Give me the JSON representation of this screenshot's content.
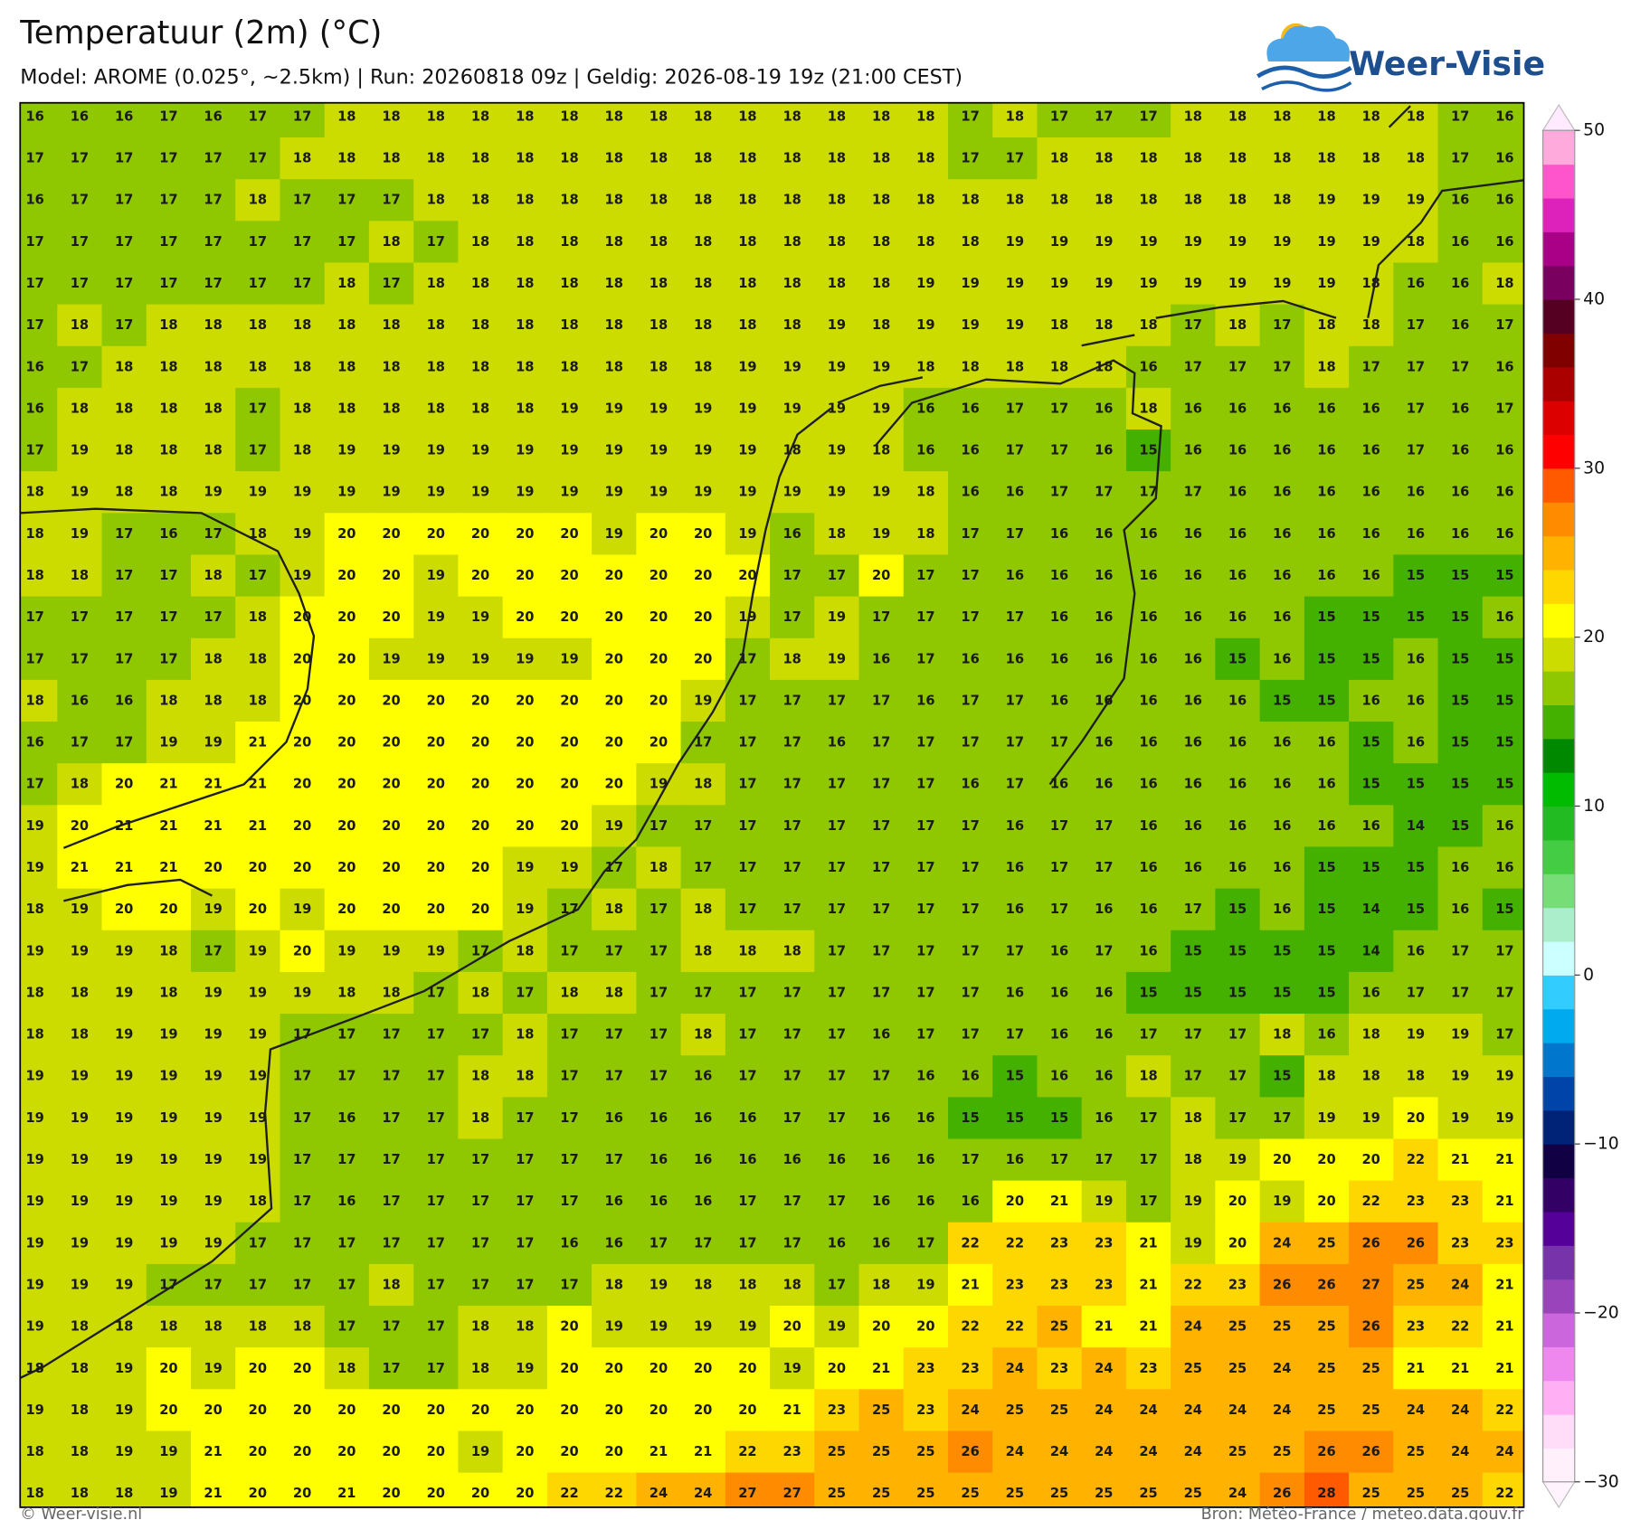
{
  "header": {
    "title": "Temperatuur (2m) (°C)",
    "subtitle": "Model: AROME (0.025°, ~2.5km)  |  Run: 20260818 09z  |  Geldig: 2026-08-19 19z (21:00 CEST)",
    "logo": "Weer-Visie"
  },
  "map": {
    "grid": {
      "rows": [
        [
          16,
          16,
          16,
          17,
          16,
          17,
          17,
          18,
          18,
          18,
          18,
          18,
          18,
          18,
          18,
          18,
          18,
          18,
          18,
          18,
          18,
          17,
          18,
          17,
          17,
          17,
          18,
          18,
          18,
          18,
          18,
          18,
          17,
          16
        ],
        [
          17,
          17,
          17,
          17,
          17,
          17,
          18,
          18,
          18,
          18,
          18,
          18,
          18,
          18,
          18,
          18,
          18,
          18,
          18,
          18,
          18,
          17,
          17,
          18,
          18,
          18,
          18,
          18,
          18,
          18,
          18,
          18,
          17,
          16
        ],
        [
          16,
          17,
          17,
          17,
          17,
          18,
          17,
          17,
          17,
          18,
          18,
          18,
          18,
          18,
          18,
          18,
          18,
          18,
          18,
          18,
          18,
          18,
          18,
          18,
          18,
          18,
          18,
          18,
          18,
          19,
          19,
          19,
          16,
          16
        ],
        [
          17,
          17,
          17,
          17,
          17,
          17,
          17,
          17,
          18,
          17,
          18,
          18,
          18,
          18,
          18,
          18,
          18,
          18,
          18,
          18,
          18,
          18,
          19,
          19,
          19,
          19,
          19,
          19,
          19,
          19,
          19,
          18,
          16,
          16
        ],
        [
          17,
          17,
          17,
          17,
          17,
          17,
          17,
          18,
          17,
          18,
          18,
          18,
          18,
          18,
          18,
          18,
          18,
          18,
          18,
          18,
          19,
          19,
          19,
          19,
          19,
          19,
          19,
          19,
          19,
          19,
          18,
          16,
          16,
          18
        ],
        [
          17,
          18,
          17,
          18,
          18,
          18,
          18,
          18,
          18,
          18,
          18,
          18,
          18,
          18,
          18,
          18,
          18,
          18,
          19,
          18,
          19,
          19,
          19,
          18,
          18,
          18,
          17,
          18,
          17,
          18,
          18,
          17,
          16,
          17
        ],
        [
          16,
          17,
          18,
          18,
          18,
          18,
          18,
          18,
          18,
          18,
          18,
          18,
          18,
          18,
          18,
          18,
          19,
          19,
          19,
          19,
          18,
          18,
          18,
          18,
          18,
          16,
          17,
          17,
          17,
          18,
          17,
          17,
          17,
          16
        ],
        [
          16,
          18,
          18,
          18,
          18,
          17,
          18,
          18,
          18,
          18,
          18,
          18,
          19,
          19,
          19,
          19,
          19,
          19,
          19,
          19,
          16,
          16,
          17,
          17,
          16,
          18,
          16,
          16,
          16,
          16,
          16,
          17,
          16,
          17
        ],
        [
          17,
          19,
          18,
          18,
          18,
          17,
          18,
          19,
          19,
          19,
          19,
          19,
          19,
          19,
          19,
          19,
          19,
          18,
          19,
          18,
          16,
          16,
          17,
          17,
          16,
          15,
          16,
          16,
          16,
          16,
          16,
          17,
          16,
          16
        ],
        [
          18,
          19,
          18,
          18,
          19,
          19,
          19,
          19,
          19,
          19,
          19,
          19,
          19,
          19,
          19,
          19,
          19,
          19,
          19,
          19,
          18,
          16,
          16,
          17,
          17,
          17,
          17,
          16,
          16,
          16,
          16,
          16,
          16,
          16
        ],
        [
          18,
          19,
          17,
          16,
          17,
          18,
          19,
          20,
          20,
          20,
          20,
          20,
          20,
          19,
          20,
          20,
          19,
          16,
          18,
          19,
          18,
          17,
          17,
          16,
          16,
          16,
          16,
          16,
          16,
          16,
          16,
          16,
          16,
          16
        ],
        [
          18,
          18,
          17,
          17,
          18,
          17,
          19,
          20,
          20,
          19,
          20,
          20,
          20,
          20,
          20,
          20,
          20,
          17,
          17,
          20,
          17,
          17,
          16,
          16,
          16,
          16,
          16,
          16,
          16,
          16,
          16,
          15,
          15,
          15
        ],
        [
          17,
          17,
          17,
          17,
          17,
          18,
          20,
          20,
          20,
          19,
          19,
          20,
          20,
          20,
          20,
          20,
          19,
          17,
          19,
          17,
          17,
          17,
          17,
          16,
          16,
          16,
          16,
          16,
          16,
          15,
          15,
          15,
          15,
          16
        ],
        [
          17,
          17,
          17,
          17,
          18,
          18,
          20,
          20,
          19,
          19,
          19,
          19,
          19,
          20,
          20,
          20,
          17,
          18,
          19,
          16,
          17,
          16,
          16,
          16,
          16,
          16,
          16,
          15,
          16,
          15,
          15,
          16,
          15,
          15
        ],
        [
          18,
          16,
          16,
          18,
          18,
          18,
          20,
          20,
          20,
          20,
          20,
          20,
          20,
          20,
          20,
          19,
          17,
          17,
          17,
          17,
          16,
          17,
          17,
          16,
          16,
          16,
          16,
          16,
          15,
          15,
          16,
          16,
          15,
          15
        ],
        [
          16,
          17,
          17,
          19,
          19,
          21,
          20,
          20,
          20,
          20,
          20,
          20,
          20,
          20,
          20,
          17,
          17,
          17,
          16,
          17,
          17,
          17,
          17,
          17,
          16,
          16,
          16,
          16,
          16,
          16,
          15,
          16,
          15,
          15
        ],
        [
          17,
          18,
          20,
          21,
          21,
          21,
          20,
          20,
          20,
          20,
          20,
          20,
          20,
          20,
          19,
          18,
          17,
          17,
          17,
          17,
          17,
          16,
          17,
          16,
          16,
          16,
          16,
          16,
          16,
          16,
          15,
          15,
          15,
          15
        ],
        [
          19,
          20,
          21,
          21,
          21,
          21,
          20,
          20,
          20,
          20,
          20,
          20,
          20,
          19,
          17,
          17,
          17,
          17,
          17,
          17,
          17,
          17,
          16,
          17,
          17,
          16,
          16,
          16,
          16,
          16,
          16,
          14,
          15,
          16
        ],
        [
          19,
          21,
          21,
          21,
          20,
          20,
          20,
          20,
          20,
          20,
          20,
          19,
          19,
          17,
          18,
          17,
          17,
          17,
          17,
          17,
          17,
          17,
          16,
          17,
          17,
          16,
          16,
          16,
          16,
          15,
          15,
          15,
          16,
          16
        ],
        [
          18,
          19,
          20,
          20,
          19,
          20,
          19,
          20,
          20,
          20,
          20,
          19,
          17,
          18,
          17,
          18,
          17,
          17,
          17,
          17,
          17,
          17,
          16,
          17,
          16,
          16,
          17,
          15,
          16,
          15,
          14,
          15,
          16,
          15
        ],
        [
          19,
          19,
          19,
          18,
          17,
          19,
          20,
          19,
          19,
          19,
          17,
          18,
          17,
          17,
          17,
          18,
          18,
          18,
          17,
          17,
          17,
          17,
          17,
          16,
          17,
          16,
          15,
          15,
          15,
          15,
          14,
          16,
          17,
          17
        ],
        [
          18,
          18,
          19,
          18,
          19,
          19,
          19,
          18,
          18,
          17,
          18,
          17,
          18,
          18,
          17,
          17,
          17,
          17,
          17,
          17,
          17,
          17,
          16,
          16,
          16,
          15,
          15,
          15,
          15,
          15,
          16,
          17,
          17,
          17
        ],
        [
          18,
          18,
          19,
          19,
          19,
          19,
          17,
          17,
          17,
          17,
          17,
          18,
          17,
          17,
          17,
          18,
          17,
          17,
          17,
          16,
          17,
          17,
          17,
          16,
          16,
          17,
          17,
          17,
          18,
          16,
          18,
          19,
          19,
          17
        ],
        [
          19,
          19,
          19,
          19,
          19,
          19,
          17,
          17,
          17,
          17,
          18,
          18,
          17,
          17,
          17,
          16,
          17,
          17,
          17,
          17,
          16,
          16,
          15,
          16,
          16,
          18,
          17,
          17,
          15,
          18,
          18,
          18,
          19,
          19
        ],
        [
          19,
          19,
          19,
          19,
          19,
          19,
          17,
          16,
          17,
          17,
          18,
          17,
          17,
          16,
          16,
          16,
          16,
          17,
          17,
          16,
          16,
          15,
          15,
          15,
          16,
          17,
          18,
          17,
          17,
          19,
          19,
          20,
          19,
          19
        ],
        [
          19,
          19,
          19,
          19,
          19,
          19,
          17,
          17,
          17,
          17,
          17,
          17,
          17,
          17,
          16,
          16,
          16,
          16,
          16,
          16,
          16,
          17,
          16,
          17,
          17,
          17,
          18,
          19,
          20,
          20,
          20,
          22,
          21,
          21
        ],
        [
          19,
          19,
          19,
          19,
          19,
          18,
          17,
          16,
          17,
          17,
          17,
          17,
          17,
          16,
          16,
          16,
          17,
          17,
          17,
          16,
          16,
          16,
          20,
          21,
          19,
          17,
          19,
          20,
          19,
          20,
          22,
          23,
          23,
          21
        ],
        [
          19,
          19,
          19,
          19,
          19,
          17,
          17,
          17,
          17,
          17,
          17,
          17,
          16,
          16,
          17,
          17,
          17,
          17,
          16,
          16,
          17,
          22,
          22,
          23,
          23,
          21,
          19,
          20,
          24,
          25,
          26,
          26,
          23,
          23
        ],
        [
          19,
          19,
          19,
          17,
          17,
          17,
          17,
          17,
          18,
          17,
          17,
          17,
          17,
          18,
          19,
          18,
          18,
          18,
          17,
          18,
          19,
          21,
          23,
          23,
          23,
          21,
          22,
          23,
          26,
          26,
          27,
          25,
          24,
          21
        ],
        [
          19,
          18,
          18,
          18,
          18,
          18,
          18,
          17,
          17,
          17,
          18,
          18,
          20,
          19,
          19,
          19,
          19,
          20,
          19,
          20,
          20,
          22,
          22,
          25,
          21,
          21,
          24,
          25,
          25,
          25,
          26,
          23,
          22,
          21
        ],
        [
          18,
          18,
          19,
          20,
          19,
          20,
          20,
          18,
          17,
          17,
          18,
          19,
          20,
          20,
          20,
          20,
          20,
          19,
          20,
          21,
          23,
          23,
          24,
          23,
          24,
          23,
          25,
          25,
          24,
          25,
          25,
          21,
          21,
          21
        ],
        [
          19,
          18,
          19,
          20,
          20,
          20,
          20,
          20,
          20,
          20,
          20,
          20,
          20,
          20,
          20,
          20,
          20,
          21,
          23,
          25,
          23,
          24,
          25,
          25,
          24,
          24,
          24,
          24,
          24,
          25,
          25,
          24,
          24,
          22
        ],
        [
          18,
          18,
          19,
          19,
          21,
          20,
          20,
          20,
          20,
          20,
          19,
          20,
          20,
          20,
          21,
          21,
          22,
          23,
          25,
          25,
          25,
          26,
          24,
          24,
          24,
          24,
          24,
          25,
          25,
          26,
          26,
          25,
          24,
          24
        ],
        [
          18,
          18,
          18,
          19,
          21,
          20,
          20,
          21,
          20,
          20,
          20,
          20,
          22,
          22,
          24,
          24,
          27,
          27,
          25,
          25,
          25,
          25,
          25,
          25,
          25,
          25,
          25,
          24,
          26,
          28,
          25,
          25,
          25,
          22
        ]
      ]
    },
    "colorbar": {
      "lim": [
        -30,
        50
      ],
      "ticks": [
        {
          "value": -30,
          "label": "−30"
        },
        {
          "value": -20,
          "label": "−20"
        },
        {
          "value": -10,
          "label": "−10"
        },
        0,
        10,
        20,
        30,
        40,
        50
      ],
      "colors": [
        "#fff0fc",
        "#ffdcf8",
        "#ffb0f5",
        "#ee88ee",
        "#cc66dd",
        "#9944bb",
        "#7733aa",
        "#550099",
        "#330066",
        "#110044",
        "#002277",
        "#0044aa",
        "#0077cc",
        "#00aaee",
        "#33ccff",
        "#ccffff",
        "#aaeecc",
        "#77dd77",
        "#44cc44",
        "#22bb22",
        "#00bb00",
        "#008800",
        "#44b000",
        "#8fc800",
        "#cddc00",
        "#ffff00",
        "#ffd700",
        "#ffb300",
        "#ff8c00",
        "#ff5a00",
        "#ff0000",
        "#dd0000",
        "#aa0000",
        "#800000",
        "#550022",
        "#7a0060",
        "#aa0088",
        "#dd22bb",
        "#ff55cc",
        "#ffaadd"
      ]
    }
  },
  "footer": {
    "left": "© Weer-visie.nl",
    "right": "Bron: Météo-France / meteo.data.gouv.fr"
  }
}
